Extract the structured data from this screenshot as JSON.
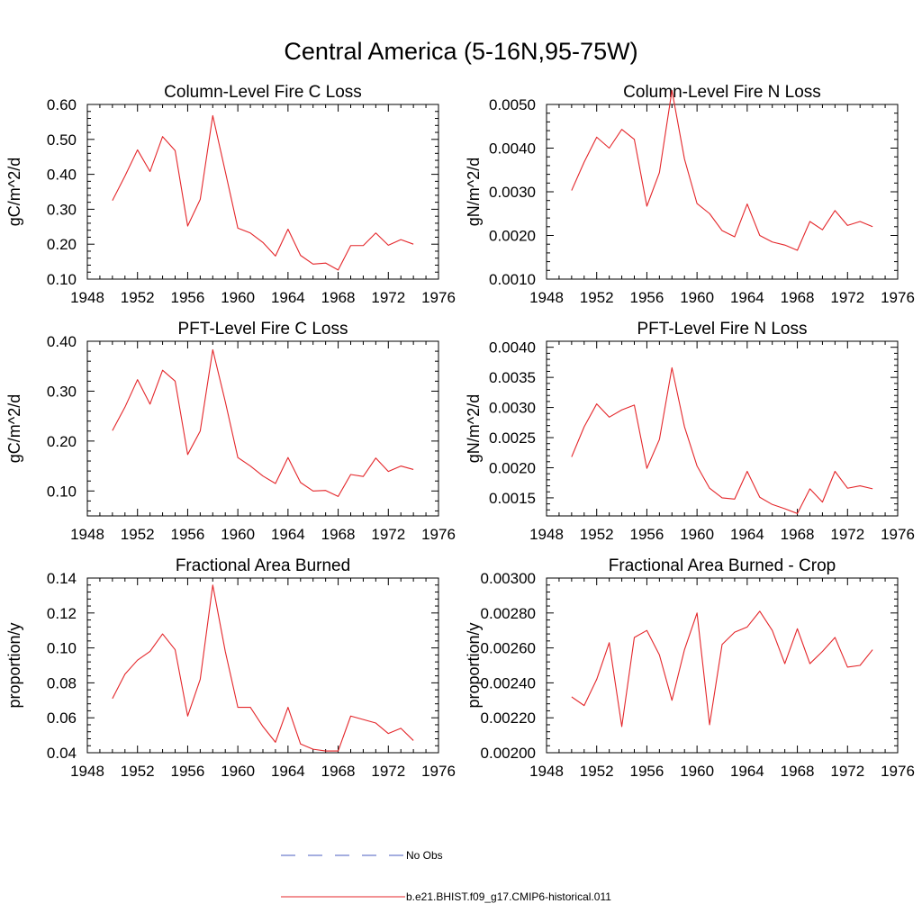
{
  "figure": {
    "title": "Central America (5-16N,95-75W)"
  },
  "colors": {
    "model_line": "#e4262a",
    "obs_line": "#4a5ec0",
    "axis": "#000000"
  },
  "legend": {
    "entries": [
      {
        "label": "No Obs",
        "style": "dashed",
        "color": "#4a5ec0"
      },
      {
        "label": "b.e21.BHIST.f09_g17.CMIP6-historical.011",
        "style": "solid",
        "color": "#e4262a"
      }
    ]
  },
  "chart_data": [
    {
      "type": "line",
      "title": "Column-Level Fire C Loss",
      "ylabel": "gC/m^2/d",
      "xlim": [
        1948,
        1976
      ],
      "ylim": [
        0.1,
        0.6
      ],
      "xticks": [
        1948,
        1952,
        1956,
        1960,
        1964,
        1968,
        1972,
        1976
      ],
      "xtick_labels": [
        "1948",
        "1952",
        "1956",
        "1960",
        "1964",
        "1968",
        "1972",
        "1976"
      ],
      "yticks": [
        0.1,
        0.2,
        0.3,
        0.4,
        0.5,
        0.6
      ],
      "ytick_labels": [
        "0.10",
        "0.20",
        "0.30",
        "0.40",
        "0.50",
        "0.60"
      ],
      "grid": false,
      "x": [
        1950,
        1951,
        1952,
        1953,
        1954,
        1955,
        1956,
        1957,
        1958,
        1959,
        1960,
        1961,
        1962,
        1963,
        1964,
        1965,
        1966,
        1967,
        1968,
        1969,
        1970,
        1971,
        1972,
        1973,
        1974
      ],
      "series": [
        {
          "name": "b.e21.BHIST.f09_g17.CMIP6-historical.011",
          "values": [
            0.325,
            0.395,
            0.47,
            0.408,
            0.508,
            0.468,
            0.252,
            0.328,
            0.568,
            0.408,
            0.246,
            0.232,
            0.205,
            0.166,
            0.243,
            0.168,
            0.143,
            0.146,
            0.126,
            0.196,
            0.196,
            0.232,
            0.197,
            0.213,
            0.2
          ]
        }
      ]
    },
    {
      "type": "line",
      "title": "Column-Level Fire N Loss",
      "ylabel": "gN/m^2/d",
      "xlim": [
        1948,
        1976
      ],
      "ylim": [
        0.001,
        0.005
      ],
      "xticks": [
        1948,
        1952,
        1956,
        1960,
        1964,
        1968,
        1972,
        1976
      ],
      "xtick_labels": [
        "1948",
        "1952",
        "1956",
        "1960",
        "1964",
        "1968",
        "1972",
        "1976"
      ],
      "yticks": [
        0.001,
        0.002,
        0.003,
        0.004,
        0.005
      ],
      "ytick_labels": [
        "0.0010",
        "0.0020",
        "0.0030",
        "0.0040",
        "0.0050"
      ],
      "grid": false,
      "x": [
        1950,
        1951,
        1952,
        1953,
        1954,
        1955,
        1956,
        1957,
        1958,
        1959,
        1960,
        1961,
        1962,
        1963,
        1964,
        1965,
        1966,
        1967,
        1968,
        1969,
        1970,
        1971,
        1972,
        1973,
        1974
      ],
      "series": [
        {
          "name": "b.e21.BHIST.f09_g17.CMIP6-historical.011",
          "values": [
            0.00303,
            0.00368,
            0.00425,
            0.004,
            0.00443,
            0.0042,
            0.00267,
            0.00344,
            0.00532,
            0.00375,
            0.00273,
            0.0025,
            0.00211,
            0.00197,
            0.00272,
            0.002,
            0.00185,
            0.00178,
            0.00166,
            0.00232,
            0.00213,
            0.00257,
            0.00223,
            0.00232,
            0.0022
          ]
        }
      ]
    },
    {
      "type": "line",
      "title": "PFT-Level Fire C Loss",
      "ylabel": "gC/m^2/d",
      "xlim": [
        1948,
        1976
      ],
      "ylim": [
        0.05,
        0.4
      ],
      "xticks": [
        1948,
        1952,
        1956,
        1960,
        1964,
        1968,
        1972,
        1976
      ],
      "xtick_labels": [
        "1948",
        "1952",
        "1956",
        "1960",
        "1964",
        "1968",
        "1972",
        "1976"
      ],
      "yticks": [
        0.1,
        0.2,
        0.3,
        0.4
      ],
      "ytick_labels": [
        "0.10",
        "0.20",
        "0.30",
        "0.40"
      ],
      "grid": false,
      "x": [
        1950,
        1951,
        1952,
        1953,
        1954,
        1955,
        1956,
        1957,
        1958,
        1959,
        1960,
        1961,
        1962,
        1963,
        1964,
        1965,
        1966,
        1967,
        1968,
        1969,
        1970,
        1971,
        1972,
        1973,
        1974
      ],
      "series": [
        {
          "name": "b.e21.BHIST.f09_g17.CMIP6-historical.011",
          "values": [
            0.221,
            0.268,
            0.323,
            0.274,
            0.342,
            0.32,
            0.173,
            0.22,
            0.383,
            0.279,
            0.167,
            0.15,
            0.13,
            0.115,
            0.167,
            0.117,
            0.1,
            0.101,
            0.089,
            0.133,
            0.129,
            0.166,
            0.139,
            0.15,
            0.143
          ]
        }
      ]
    },
    {
      "type": "line",
      "title": "PFT-Level Fire N Loss",
      "ylabel": "gN/m^2/d",
      "xlim": [
        1948,
        1976
      ],
      "ylim": [
        0.0012,
        0.0041
      ],
      "xticks": [
        1948,
        1952,
        1956,
        1960,
        1964,
        1968,
        1972,
        1976
      ],
      "xtick_labels": [
        "1948",
        "1952",
        "1956",
        "1960",
        "1964",
        "1968",
        "1972",
        "1976"
      ],
      "yticks": [
        0.0015,
        0.002,
        0.0025,
        0.003,
        0.0035,
        0.004
      ],
      "ytick_labels": [
        "0.0015",
        "0.0020",
        "0.0025",
        "0.0030",
        "0.0035",
        "0.0040"
      ],
      "grid": false,
      "x": [
        1950,
        1951,
        1952,
        1953,
        1954,
        1955,
        1956,
        1957,
        1958,
        1959,
        1960,
        1961,
        1962,
        1963,
        1964,
        1965,
        1966,
        1967,
        1968,
        1969,
        1970,
        1971,
        1972,
        1973,
        1974
      ],
      "series": [
        {
          "name": "b.e21.BHIST.f09_g17.CMIP6-historical.011",
          "values": [
            0.00218,
            0.00268,
            0.00306,
            0.00284,
            0.00296,
            0.00304,
            0.00199,
            0.00247,
            0.00366,
            0.00268,
            0.00203,
            0.00166,
            0.0015,
            0.00148,
            0.00194,
            0.00151,
            0.00139,
            0.00132,
            0.00124,
            0.00165,
            0.00143,
            0.00194,
            0.00166,
            0.0017,
            0.00165
          ]
        }
      ]
    },
    {
      "type": "line",
      "title": "Fractional Area Burned",
      "ylabel": "proportion/y",
      "xlim": [
        1948,
        1976
      ],
      "ylim": [
        0.04,
        0.14
      ],
      "xticks": [
        1948,
        1952,
        1956,
        1960,
        1964,
        1968,
        1972,
        1976
      ],
      "xtick_labels": [
        "1948",
        "1952",
        "1956",
        "1960",
        "1964",
        "1968",
        "1972",
        "1976"
      ],
      "yticks": [
        0.04,
        0.06,
        0.08,
        0.1,
        0.12,
        0.14
      ],
      "ytick_labels": [
        "0.04",
        "0.06",
        "0.08",
        "0.10",
        "0.12",
        "0.14"
      ],
      "grid": false,
      "x": [
        1950,
        1951,
        1952,
        1953,
        1954,
        1955,
        1956,
        1957,
        1958,
        1959,
        1960,
        1961,
        1962,
        1963,
        1964,
        1965,
        1966,
        1967,
        1968,
        1969,
        1970,
        1971,
        1972,
        1973,
        1974
      ],
      "series": [
        {
          "name": "b.e21.BHIST.f09_g17.CMIP6-historical.011",
          "values": [
            0.071,
            0.085,
            0.093,
            0.098,
            0.108,
            0.099,
            0.061,
            0.082,
            0.136,
            0.098,
            0.066,
            0.066,
            0.055,
            0.046,
            0.066,
            0.045,
            0.042,
            0.041,
            0.041,
            0.061,
            0.059,
            0.057,
            0.051,
            0.054,
            0.047
          ]
        }
      ]
    },
    {
      "type": "line",
      "title": "Fractional Area Burned - Crop",
      "ylabel": "proportion/y",
      "xlim": [
        1948,
        1976
      ],
      "ylim": [
        0.002,
        0.003
      ],
      "xticks": [
        1948,
        1952,
        1956,
        1960,
        1964,
        1968,
        1972,
        1976
      ],
      "xtick_labels": [
        "1948",
        "1952",
        "1956",
        "1960",
        "1964",
        "1968",
        "1972",
        "1976"
      ],
      "yticks": [
        0.002,
        0.0022,
        0.0024,
        0.0026,
        0.0028,
        0.003
      ],
      "ytick_labels": [
        "0.00200",
        "0.00220",
        "0.00240",
        "0.00260",
        "0.00280",
        "0.00300"
      ],
      "grid": false,
      "x": [
        1950,
        1951,
        1952,
        1953,
        1954,
        1955,
        1956,
        1957,
        1958,
        1959,
        1960,
        1961,
        1962,
        1963,
        1964,
        1965,
        1966,
        1967,
        1968,
        1969,
        1970,
        1971,
        1972,
        1973,
        1974
      ],
      "series": [
        {
          "name": "b.e21.BHIST.f09_g17.CMIP6-historical.011",
          "values": [
            0.00232,
            0.00227,
            0.00242,
            0.00263,
            0.00215,
            0.00266,
            0.0027,
            0.00256,
            0.0023,
            0.00259,
            0.0028,
            0.00216,
            0.00262,
            0.00269,
            0.00272,
            0.00281,
            0.0027,
            0.00251,
            0.00271,
            0.00251,
            0.00258,
            0.00266,
            0.00249,
            0.0025,
            0.00259
          ]
        }
      ]
    }
  ]
}
